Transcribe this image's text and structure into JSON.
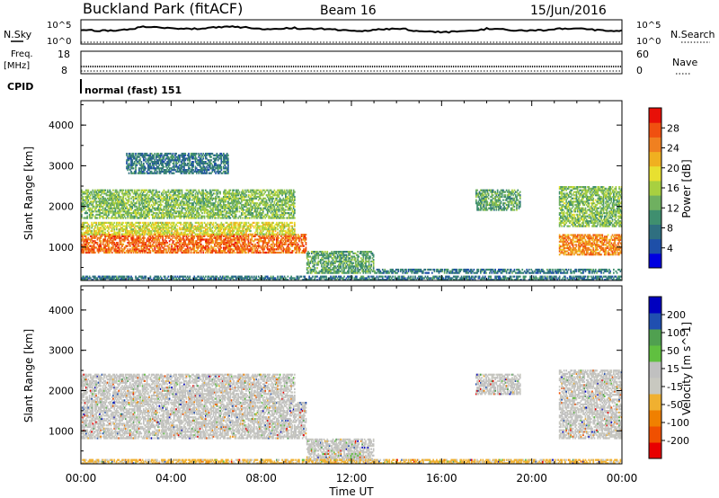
{
  "header": {
    "station": "Buckland Park (fitACF)",
    "beam": "Beam 16",
    "date": "15/Jun/2016"
  },
  "noise_panel": {
    "left_label": "N.Sky",
    "right_label": "N.Search",
    "top_tick": "10^5",
    "bottom_tick": "10^0"
  },
  "freq_panel": {
    "left_label_1": "Freq.",
    "left_label_2": "[MHz]",
    "right_label": "Nave",
    "left_top": "18",
    "left_bottom": "8",
    "right_top": "60",
    "right_bottom": "0"
  },
  "cpid": {
    "label": "CPID",
    "text": "normal (fast) 151"
  },
  "colors": {
    "power_scale": [
      "#0000e0",
      "#1e4fa8",
      "#2f6f80",
      "#3f8f6f",
      "#6fb060",
      "#a8d040",
      "#e8e030",
      "#f0b020",
      "#f08020",
      "#f05010",
      "#e81008"
    ],
    "velocity_scale": [
      "#e80000",
      "#f05000",
      "#f08000",
      "#f0b030",
      "#c8c8c0",
      "#c0c0c0",
      "#60c040",
      "#50a050",
      "#204fb0",
      "#0000c0"
    ]
  },
  "chart_data": [
    {
      "type": "heatmap",
      "name": "power",
      "ylabel": "Slant Range [km]",
      "xlabel": "",
      "x_ticks": [
        "00:00",
        "04:00",
        "08:00",
        "12:00",
        "16:00",
        "20:00",
        "00:00"
      ],
      "y_ticks": [
        "1000",
        "2000",
        "3000",
        "4000"
      ],
      "xlim": [
        0,
        24
      ],
      "ylim": [
        180,
        4600
      ],
      "colorbar_label": "Power [dB]",
      "colorbar_ticks": [
        "4",
        "8",
        "12",
        "16",
        "20",
        "24",
        "28"
      ],
      "colorbar_range": [
        0,
        32
      ],
      "regions": [
        {
          "t0": 0.0,
          "t1": 10.0,
          "r0": 850,
          "r1": 1300,
          "value": 26
        },
        {
          "t0": 0.0,
          "t1": 9.5,
          "r0": 1300,
          "r1": 1600,
          "value": 18
        },
        {
          "t0": 0.0,
          "t1": 9.5,
          "r0": 1700,
          "r1": 2400,
          "value": 14
        },
        {
          "t0": 2.0,
          "t1": 6.5,
          "r0": 2800,
          "r1": 3300,
          "value": 8
        },
        {
          "t0": 10.0,
          "t1": 13.0,
          "r0": 350,
          "r1": 900,
          "value": 12
        },
        {
          "t0": 13.0,
          "t1": 24.0,
          "r0": 350,
          "r1": 450,
          "value": 8
        },
        {
          "t0": 17.5,
          "t1": 19.5,
          "r0": 1900,
          "r1": 2400,
          "value": 12
        },
        {
          "t0": 21.2,
          "t1": 24.0,
          "r0": 800,
          "r1": 1300,
          "value": 24
        },
        {
          "t0": 21.2,
          "t1": 24.0,
          "r0": 1500,
          "r1": 2500,
          "value": 14
        },
        {
          "t0": 0.0,
          "t1": 24.0,
          "r0": 180,
          "r1": 300,
          "value": 8
        }
      ]
    },
    {
      "type": "heatmap",
      "name": "velocity",
      "ylabel": "Slant Range [km]",
      "xlabel": "Time UT",
      "x_ticks": [
        "00:00",
        "04:00",
        "08:00",
        "12:00",
        "16:00",
        "20:00",
        "00:00"
      ],
      "y_ticks": [
        "1000",
        "2000",
        "3000",
        "4000"
      ],
      "xlim": [
        0,
        24
      ],
      "ylim": [
        180,
        4600
      ],
      "colorbar_label": "Velocity [m s^-1]",
      "colorbar_ticks": [
        "200",
        "100",
        "50",
        "15",
        "-15",
        "-50",
        "-100",
        "-200"
      ],
      "colorbar_range": [
        -250,
        250
      ],
      "regions": [
        {
          "t0": 0.0,
          "t1": 10.0,
          "r0": 800,
          "r1": 1700,
          "value": 0
        },
        {
          "t0": 0.0,
          "t1": 9.5,
          "r0": 1700,
          "r1": 2400,
          "value": 0
        },
        {
          "t0": 10.0,
          "t1": 13.0,
          "r0": 250,
          "r1": 800,
          "value": 0
        },
        {
          "t0": 11.8,
          "t1": 12.4,
          "r0": 250,
          "r1": 450,
          "value": 40
        },
        {
          "t0": 17.5,
          "t1": 19.5,
          "r0": 1900,
          "r1": 2400,
          "value": 0
        },
        {
          "t0": 21.2,
          "t1": 24.0,
          "r0": 800,
          "r1": 2500,
          "value": 0
        },
        {
          "t0": 0.0,
          "t1": 24.0,
          "r0": 180,
          "r1": 280,
          "value": -60
        }
      ]
    }
  ]
}
